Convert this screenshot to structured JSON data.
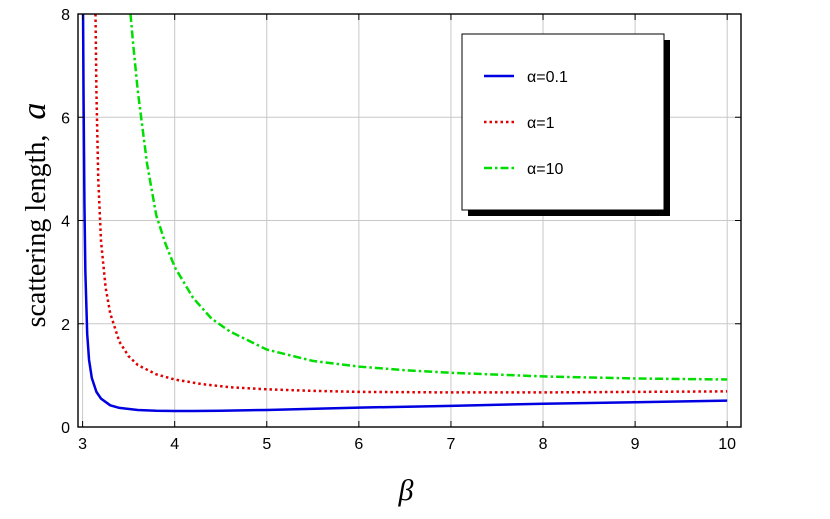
{
  "chart_data": {
    "type": "line",
    "title": "",
    "xlabel": "β",
    "ylabel_text": "scattering length,",
    "ylabel_symbol": "a",
    "xlim": [
      2.95,
      10.15
    ],
    "ylim": [
      0,
      8
    ],
    "xticks": [
      3,
      4,
      5,
      6,
      7,
      8,
      9,
      10
    ],
    "yticks": [
      0,
      2,
      4,
      6,
      8
    ],
    "grid": true,
    "legend_position": "top-right",
    "series": [
      {
        "name": "α=0.1",
        "color": "#0000e0",
        "dash": "solid",
        "x": [
          3.005,
          3.01,
          3.02,
          3.03,
          3.05,
          3.07,
          3.1,
          3.15,
          3.2,
          3.3,
          3.4,
          3.6,
          3.8,
          4.0,
          4.2,
          4.5,
          5.0,
          6.0,
          7.0,
          8.0,
          9.0,
          10.0
        ],
        "y": [
          8.0,
          6.5,
          4.3,
          3.0,
          1.8,
          1.3,
          0.95,
          0.68,
          0.55,
          0.42,
          0.37,
          0.33,
          0.315,
          0.31,
          0.31,
          0.315,
          0.33,
          0.375,
          0.41,
          0.45,
          0.48,
          0.51
        ]
      },
      {
        "name": "α=1",
        "color": "#e00000",
        "dash": "dotted",
        "x": [
          3.14,
          3.15,
          3.17,
          3.2,
          3.25,
          3.3,
          3.4,
          3.5,
          3.6,
          3.8,
          4.0,
          4.3,
          4.6,
          5.0,
          5.5,
          6.0,
          7.0,
          8.0,
          9.0,
          10.0
        ],
        "y": [
          8.0,
          6.5,
          4.8,
          3.6,
          2.7,
          2.2,
          1.65,
          1.37,
          1.2,
          1.02,
          0.92,
          0.83,
          0.77,
          0.73,
          0.7,
          0.68,
          0.67,
          0.67,
          0.68,
          0.69
        ]
      },
      {
        "name": "α=10",
        "color": "#00dd00",
        "dash": "dashdot",
        "x": [
          3.52,
          3.55,
          3.6,
          3.7,
          3.8,
          3.9,
          4.0,
          4.2,
          4.4,
          4.6,
          5.0,
          5.5,
          6.0,
          6.5,
          7.0,
          8.0,
          9.0,
          10.0
        ],
        "y": [
          8.0,
          7.4,
          6.5,
          5.1,
          4.1,
          3.55,
          3.1,
          2.5,
          2.1,
          1.85,
          1.5,
          1.28,
          1.17,
          1.1,
          1.05,
          0.98,
          0.94,
          0.92
        ]
      }
    ]
  }
}
